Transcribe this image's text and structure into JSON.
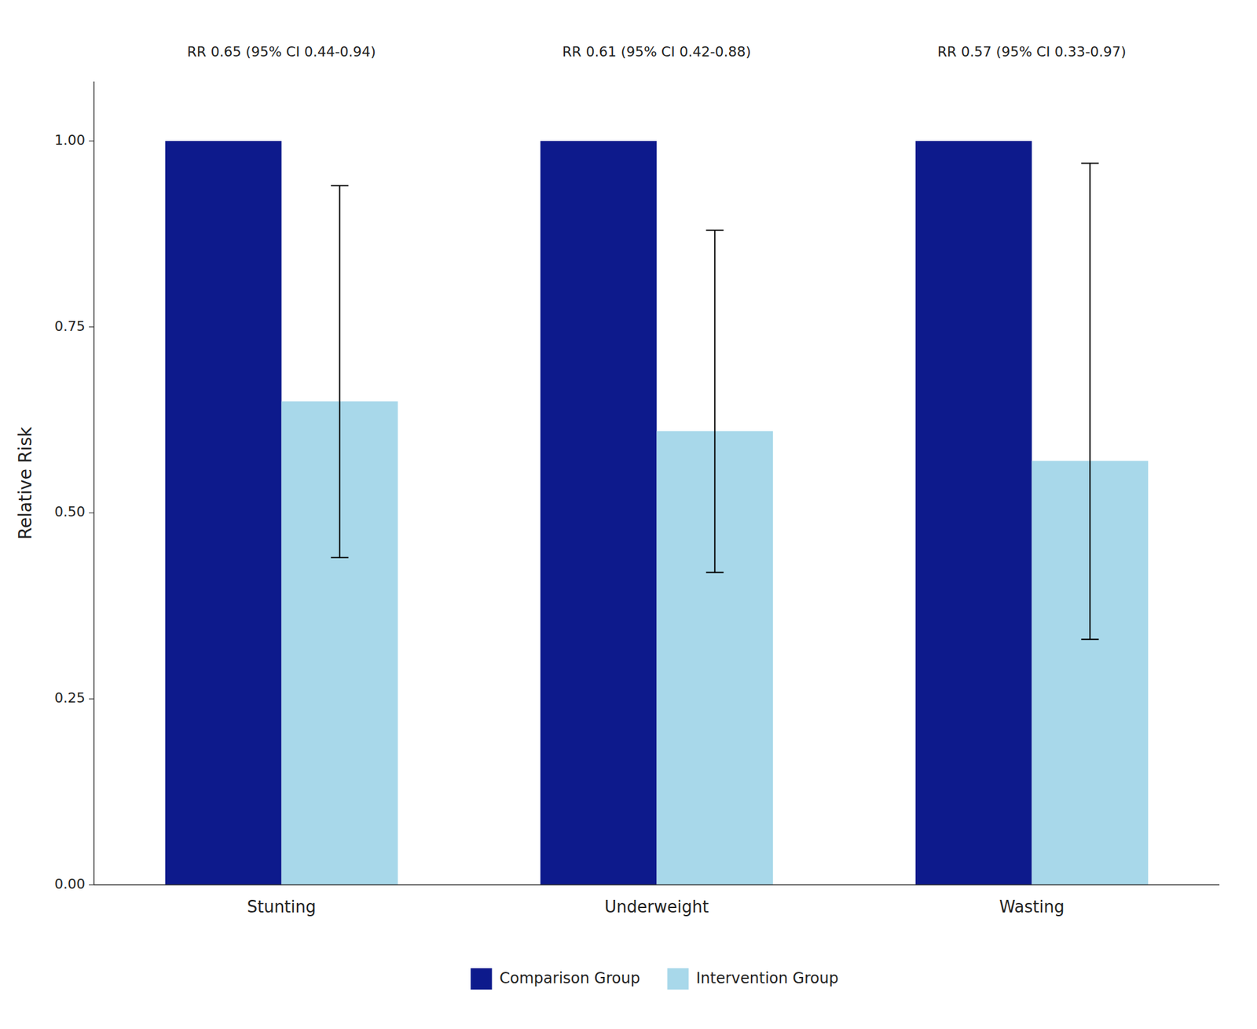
{
  "chart_data": {
    "type": "bar",
    "categories": [
      "Stunting",
      "Underweight",
      "Wasting"
    ],
    "series": [
      {
        "name": "Comparison Group",
        "color": "#0D1A8C",
        "values": [
          1.0,
          1.0,
          1.0
        ]
      },
      {
        "name": "Intervention Group",
        "color": "#A8D8EA",
        "values": [
          0.65,
          0.61,
          0.57
        ],
        "ci_lower": [
          0.44,
          0.42,
          0.33
        ],
        "ci_upper": [
          0.94,
          0.88,
          0.97
        ]
      }
    ],
    "ylabel": "Relative Risk",
    "ylim": [
      0,
      1.08
    ],
    "yticks": [
      {
        "value": 0,
        "label": "0.00"
      },
      {
        "value": 0.25,
        "label": "0.25"
      },
      {
        "value": 0.5,
        "label": "0.50"
      },
      {
        "value": 0.75,
        "label": "0.75"
      },
      {
        "value": 1.0,
        "label": "1.00"
      }
    ],
    "annotations": [
      "RR 0.65 (95% CI 0.44-0.94)",
      "RR 0.61 (95% CI 0.42-0.88)",
      "RR 0.57 (95% CI 0.33-0.97)"
    ],
    "grid": false,
    "legend": "bottom"
  }
}
